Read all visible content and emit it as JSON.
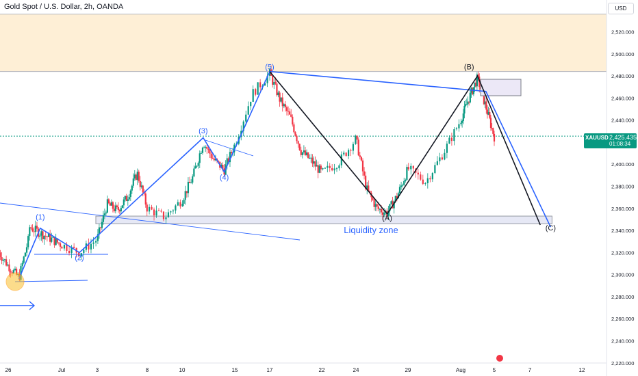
{
  "header": {
    "title": "Gold Spot / U.S. Dollar, 2h, OANDA",
    "currency_button": "USD"
  },
  "price_tag": {
    "symbol": "XAUUSD",
    "price": "2,425.435",
    "countdown": "01:08:34",
    "color": "#089981"
  },
  "colors": {
    "up": "#089981",
    "down": "#f23645",
    "wave": "#2962ff",
    "abc": "#131722",
    "resistance_zone": "#fde9c8",
    "liquidity_zone": "#e6e8f5",
    "current_price_line": "#089981"
  },
  "chart_data": {
    "type": "candlestick",
    "title": "Gold Spot / U.S. Dollar, 2h, OANDA",
    "y_axis": {
      "min": 2220,
      "max": 2540,
      "ticks": [
        2220,
        2240,
        2260,
        2280,
        2300,
        2320,
        2340,
        2360,
        2380,
        2400,
        2420,
        2440,
        2460,
        2480,
        2500,
        2520
      ],
      "tick_labels": [
        "2,220.000",
        "2,240.000",
        "2,260.000",
        "2,280.000",
        "2,300.000",
        "2,320.000",
        "2,340.000",
        "2,360.000",
        "2,380.000",
        "2,400.000",
        "2,420.000",
        "2,440.000",
        "2,460.000",
        "2,480.000",
        "2,500.000",
        "2,520.000"
      ]
    },
    "x_axis": {
      "range": [
        "Jun 25",
        "Aug 13"
      ],
      "ticks": [
        {
          "label": "26",
          "date": "Jun 26"
        },
        {
          "label": "Jul",
          "date": "Jul 1"
        },
        {
          "label": "3",
          "date": "Jul 3"
        },
        {
          "label": "8",
          "date": "Jul 8"
        },
        {
          "label": "10",
          "date": "Jul 10"
        },
        {
          "label": "15",
          "date": "Jul 15"
        },
        {
          "label": "17",
          "date": "Jul 17"
        },
        {
          "label": "22",
          "date": "Jul 22"
        },
        {
          "label": "24",
          "date": "Jul 24"
        },
        {
          "label": "29",
          "date": "Jul 29"
        },
        {
          "label": "Aug",
          "date": "Aug 1"
        },
        {
          "label": "5",
          "date": "Aug 5"
        },
        {
          "label": "7",
          "date": "Aug 7"
        },
        {
          "label": "12",
          "date": "Aug 12"
        }
      ]
    },
    "price_path": [
      {
        "date": "Jun 25",
        "price": 2322
      },
      {
        "date": "Jun 26",
        "price": 2308
      },
      {
        "date": "Jun 27",
        "price": 2297
      },
      {
        "date": "Jun 28",
        "price": 2336
      },
      {
        "date": "Jun 28",
        "price": 2343
      },
      {
        "date": "Jul 1",
        "price": 2327
      },
      {
        "date": "Jul 2",
        "price": 2320
      },
      {
        "date": "Jul 3",
        "price": 2332
      },
      {
        "date": "Jul 4",
        "price": 2364
      },
      {
        "date": "Jul 5",
        "price": 2358
      },
      {
        "date": "Jul 6",
        "price": 2370
      },
      {
        "date": "Jul 7",
        "price": 2392
      },
      {
        "date": "Jul 8",
        "price": 2360
      },
      {
        "date": "Jul 9",
        "price": 2352
      },
      {
        "date": "Jul 10",
        "price": 2368
      },
      {
        "date": "Jul 11",
        "price": 2388
      },
      {
        "date": "Jul 12",
        "price": 2420
      },
      {
        "date": "Jul 13",
        "price": 2404
      },
      {
        "date": "Jul 14",
        "price": 2395
      },
      {
        "date": "Jul 15",
        "price": 2418
      },
      {
        "date": "Jul 16",
        "price": 2464
      },
      {
        "date": "Jul 17",
        "price": 2482
      },
      {
        "date": "Jul 18",
        "price": 2458
      },
      {
        "date": "Jul 19",
        "price": 2442
      },
      {
        "date": "Jul 20",
        "price": 2412
      },
      {
        "date": "Jul 21",
        "price": 2403
      },
      {
        "date": "Jul 22",
        "price": 2392
      },
      {
        "date": "Jul 23",
        "price": 2402
      },
      {
        "date": "Jul 24",
        "price": 2423
      },
      {
        "date": "Jul 25",
        "price": 2378
      },
      {
        "date": "Jul 26",
        "price": 2360
      },
      {
        "date": "Jul 27",
        "price": 2356
      },
      {
        "date": "Jul 28",
        "price": 2372
      },
      {
        "date": "Jul 29",
        "price": 2396
      },
      {
        "date": "Jul 30",
        "price": 2384
      },
      {
        "date": "Jul 31",
        "price": 2410
      },
      {
        "date": "Aug 1",
        "price": 2440
      },
      {
        "date": "Aug 2",
        "price": 2460
      },
      {
        "date": "Aug 3",
        "price": 2478
      },
      {
        "date": "Aug 4",
        "price": 2452
      },
      {
        "date": "Aug 5",
        "price": 2425
      }
    ],
    "current_price": 2425.435,
    "resistance_zone": {
      "from": 2484,
      "to": 2536
    },
    "liquidity_zone": {
      "label": "Liquidity zone",
      "from": 2346,
      "to": 2353,
      "start": "Jul 3",
      "end": "Aug 9"
    },
    "annotations": [
      {
        "text": "(1)",
        "date": "Jun 29",
        "price": 2350
      },
      {
        "text": "(2)",
        "date": "Jul 2",
        "price": 2313
      },
      {
        "text": "(3)",
        "date": "Jul 12",
        "price": 2428
      },
      {
        "text": "(4)",
        "date": "Jul 14",
        "price": 2386
      },
      {
        "text": "(5)",
        "date": "Jul 17",
        "price": 2486
      },
      {
        "text": "(A)",
        "date": "Jul 27",
        "price": 2349
      },
      {
        "text": "(B)",
        "date": "Aug 2",
        "price": 2486
      },
      {
        "text": "(C)",
        "date": "Aug 9",
        "price": 2340
      }
    ],
    "wave_path": [
      {
        "date": "Jun 27",
        "price": 2296
      },
      {
        "date": "Jun 29",
        "price": 2342
      },
      {
        "date": "Jul 2",
        "price": 2320
      },
      {
        "date": "Jul 12",
        "price": 2424
      },
      {
        "date": "Jul 14",
        "price": 2393
      },
      {
        "date": "Jul 17",
        "price": 2484
      },
      {
        "date": "Aug 4",
        "price": 2466
      },
      {
        "date": "Aug 9",
        "price": 2343
      }
    ],
    "abc_path": [
      {
        "date": "Jul 17",
        "price": 2484
      },
      {
        "date": "Jul 27",
        "price": 2355
      },
      {
        "date": "Aug 3",
        "price": 2480
      },
      {
        "date": "Aug 8",
        "price": 2345
      }
    ],
    "legend": null
  }
}
